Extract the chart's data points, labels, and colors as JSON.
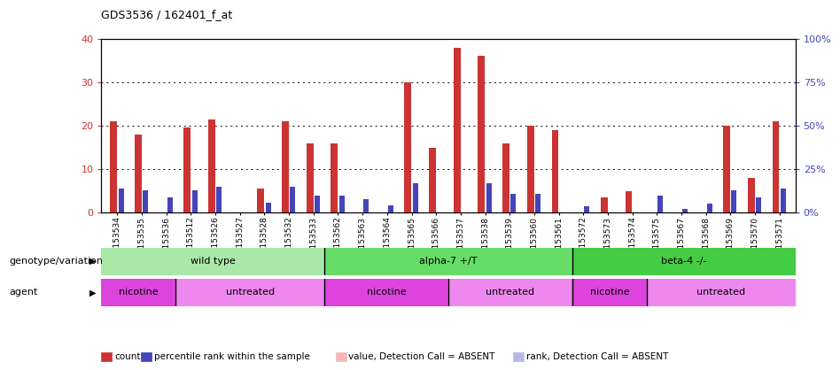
{
  "title": "GDS3536 / 162401_f_at",
  "samples": [
    "GSM153534",
    "GSM153535",
    "GSM153536",
    "GSM153512",
    "GSM153526",
    "GSM153527",
    "GSM153528",
    "GSM153532",
    "GSM153533",
    "GSM153562",
    "GSM153563",
    "GSM153564",
    "GSM153565",
    "GSM153566",
    "GSM153537",
    "GSM153538",
    "GSM153539",
    "GSM153560",
    "GSM153561",
    "GSM153572",
    "GSM153573",
    "GSM153574",
    "GSM153575",
    "GSM153567",
    "GSM153568",
    "GSM153569",
    "GSM153570",
    "GSM153571"
  ],
  "count_values": [
    21,
    18,
    0,
    19.5,
    21.5,
    0,
    5.5,
    21,
    16,
    16,
    0,
    0,
    30,
    15,
    38,
    36,
    16,
    20,
    19,
    0,
    3.5,
    5,
    0,
    0,
    0,
    20,
    8,
    21
  ],
  "rank_values": [
    14,
    13,
    9,
    13,
    15,
    0,
    6,
    15,
    10,
    10,
    8,
    4,
    17,
    0,
    0,
    17,
    11,
    11,
    0,
    3.5,
    0,
    0,
    10,
    2,
    5,
    13,
    9,
    14
  ],
  "count_absent": [
    false,
    false,
    true,
    false,
    false,
    true,
    false,
    false,
    false,
    false,
    true,
    true,
    false,
    false,
    false,
    false,
    false,
    false,
    false,
    true,
    false,
    false,
    true,
    true,
    true,
    false,
    false,
    false
  ],
  "rank_absent": [
    false,
    false,
    false,
    false,
    false,
    true,
    false,
    false,
    false,
    false,
    false,
    false,
    false,
    true,
    true,
    false,
    false,
    false,
    true,
    false,
    true,
    true,
    false,
    false,
    false,
    false,
    false,
    false
  ],
  "ylim_left": [
    0,
    40
  ],
  "ylim_right": [
    0,
    100
  ],
  "yticks_left": [
    0,
    10,
    20,
    30,
    40
  ],
  "yticks_right": [
    0,
    25,
    50,
    75,
    100
  ],
  "color_count": "#cc3333",
  "color_rank": "#4444bb",
  "color_count_absent": "#f5b8b8",
  "color_rank_absent": "#b8b8e8",
  "genotype_groups": [
    {
      "label": "wild type",
      "start": 0,
      "end": 9,
      "color": "#aae8aa"
    },
    {
      "label": "alpha-7 +/T",
      "start": 9,
      "end": 19,
      "color": "#66dd66"
    },
    {
      "label": "beta-4 -/-",
      "start": 19,
      "end": 28,
      "color": "#44cc44"
    }
  ],
  "agent_groups": [
    {
      "label": "nicotine",
      "start": 0,
      "end": 3,
      "color": "#dd44dd"
    },
    {
      "label": "untreated",
      "start": 3,
      "end": 9,
      "color": "#ee88ee"
    },
    {
      "label": "nicotine",
      "start": 9,
      "end": 14,
      "color": "#dd44dd"
    },
    {
      "label": "untreated",
      "start": 14,
      "end": 19,
      "color": "#ee88ee"
    },
    {
      "label": "nicotine",
      "start": 19,
      "end": 22,
      "color": "#dd44dd"
    },
    {
      "label": "untreated",
      "start": 22,
      "end": 28,
      "color": "#ee88ee"
    }
  ],
  "legend_items": [
    {
      "label": "count",
      "color": "#cc3333"
    },
    {
      "label": "percentile rank within the sample",
      "color": "#4444bb"
    },
    {
      "label": "value, Detection Call = ABSENT",
      "color": "#f5b8b8"
    },
    {
      "label": "rank, Detection Call = ABSENT",
      "color": "#b8b8e8"
    }
  ],
  "tick_label_fontsize": 6.5,
  "axis_label_color_left": "#cc3333",
  "axis_label_color_right": "#4444bb",
  "genotype_row_label": "genotype/variation",
  "agent_row_label": "agent"
}
